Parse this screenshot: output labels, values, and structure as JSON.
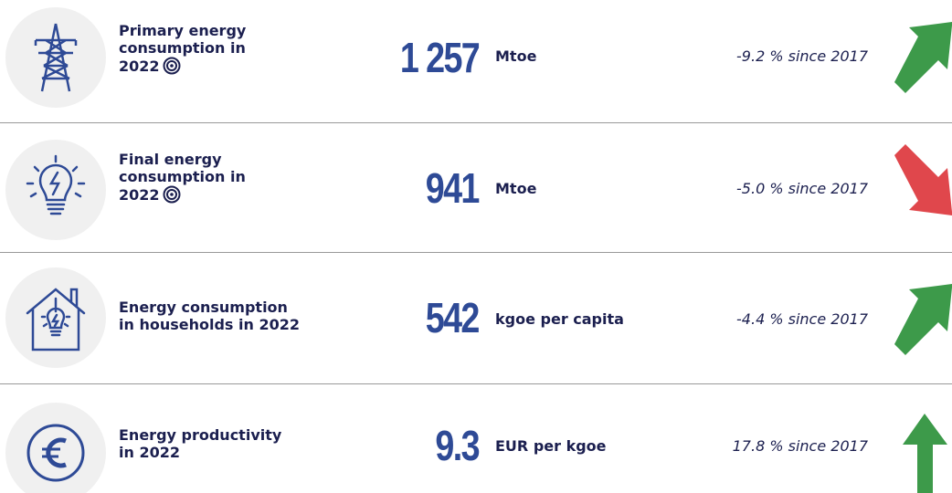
{
  "rows": [
    {
      "label_lines": [
        "Primary energy",
        "consumption in",
        "2022"
      ],
      "value": "1 257",
      "unit": "Mtoe",
      "change": "-9.2 % since 2017"
    },
    {
      "label_lines": [
        "Final energy",
        "consumption in",
        "2022"
      ],
      "value": "941",
      "unit": "Mtoe",
      "change": "-5.0 % since 2017"
    },
    {
      "label_lines": [
        "Energy consumption",
        "in households in 2022"
      ],
      "value": "542",
      "unit": "kgoe per capita",
      "change": "-4.4 % since 2017"
    },
    {
      "label_lines": [
        "Energy productivity",
        "in 2022"
      ],
      "value": "9.3",
      "unit": "EUR per kgoe",
      "change": "17.8 % since 2017"
    }
  ]
}
